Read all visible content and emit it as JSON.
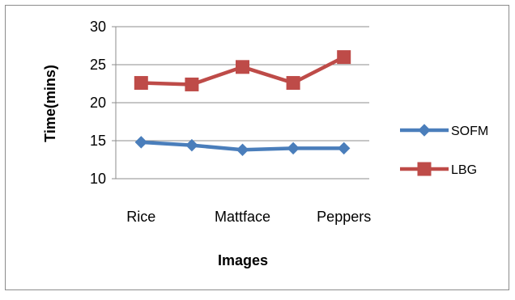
{
  "chart_data": {
    "type": "line",
    "title": "",
    "xlabel": "Images",
    "ylabel": "Time(mins)",
    "categories": [
      "Rice",
      "",
      "Mattface",
      "",
      "Peppers"
    ],
    "ylim": [
      10,
      30
    ],
    "yticks": [
      "10",
      "15",
      "20",
      "25",
      "30"
    ],
    "grid": true,
    "legend_position": "right",
    "series": [
      {
        "name": "SOFM",
        "marker": "diamond",
        "color": "#4a7ebb",
        "values": [
          14.8,
          14.4,
          13.8,
          14.0,
          14.0
        ]
      },
      {
        "name": "LBG",
        "marker": "square",
        "color": "#be4b48",
        "values": [
          22.6,
          22.4,
          24.7,
          22.6,
          26.0
        ]
      }
    ]
  }
}
